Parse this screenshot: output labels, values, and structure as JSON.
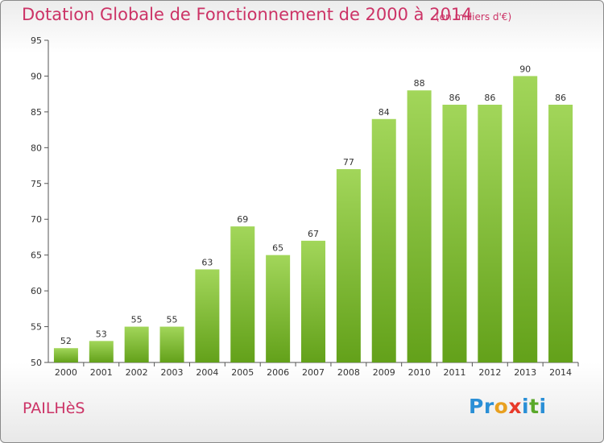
{
  "title": "Dotation Globale de Fonctionnement de 2000 à 2014",
  "unit_note": "(en milliers d'€)",
  "commune": "PAILHèS",
  "logo": {
    "text": "Proxiti",
    "letters": [
      "P",
      "r",
      "o",
      "x",
      "i",
      "t",
      "i"
    ],
    "colors": [
      "#2a8fd6",
      "#2a8fd6",
      "#e8a020",
      "#e83a2a",
      "#2a8fd6",
      "#5aa82a",
      "#2a8fd6"
    ]
  },
  "colors": {
    "accent": "#cc3366",
    "bar_light": "#a2d65a",
    "bar_dark": "#63a11a"
  },
  "chart_data": {
    "type": "bar",
    "categories": [
      "2000",
      "2001",
      "2002",
      "2003",
      "2004",
      "2005",
      "2006",
      "2007",
      "2008",
      "2009",
      "2010",
      "2011",
      "2012",
      "2013",
      "2014"
    ],
    "values": [
      52,
      53,
      55,
      55,
      63,
      69,
      65,
      67,
      77,
      84,
      88,
      86,
      86,
      90,
      86
    ],
    "title": "Dotation Globale de Fonctionnement de 2000 à 2014",
    "ylabel": "(en milliers d'€)",
    "ylim": [
      50,
      95
    ],
    "yticks": [
      50,
      55,
      60,
      65,
      70,
      75,
      80,
      85,
      90,
      95
    ],
    "grid": false,
    "legend": "none"
  }
}
